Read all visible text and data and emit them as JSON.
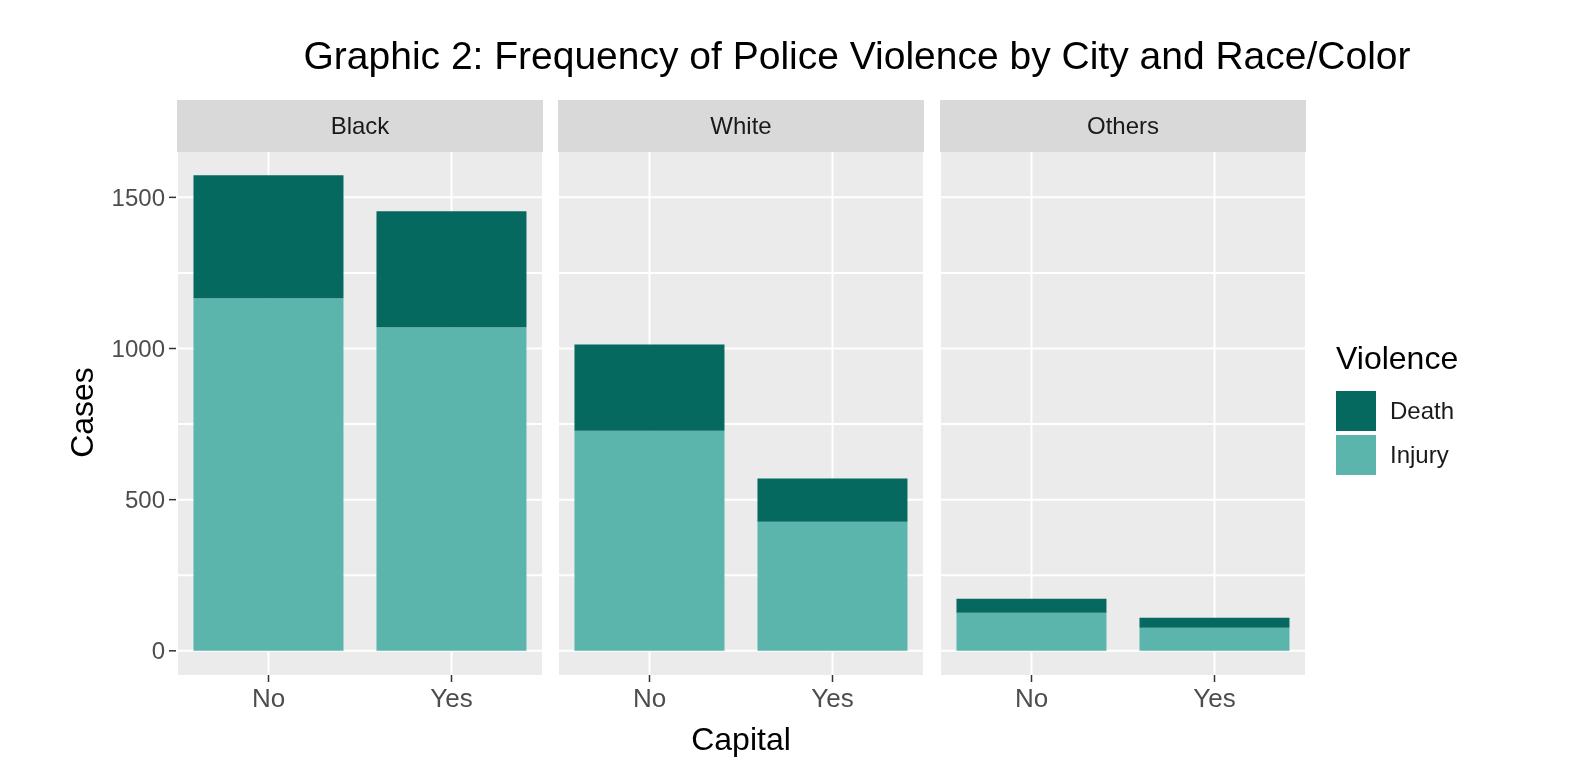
{
  "chart_data": [
    {
      "type": "bar",
      "title": "Black",
      "annotations": [
        "Graphic 2: Frequency of Police Violence by City and Race/Color"
      ],
      "ylabel": "Cases",
      "categories": [
        "No",
        "Yes"
      ],
      "stacked": true,
      "ylim": [
        -80,
        1650
      ],
      "yticks": [
        0,
        {
          "value": 250,
          "label": null
        },
        500,
        {
          "value": 750,
          "label": null
        },
        1000,
        {
          "value": 1250,
          "label": null
        },
        1500
      ],
      "grid": true,
      "series": [
        {
          "color": "#5cb5ad",
          "values": [
            1166,
            1070
          ]
        },
        {
          "color": "#05695f",
          "values": [
            407,
            384
          ]
        }
      ]
    },
    {
      "type": "bar",
      "title": "White",
      "xlabel": "Capital",
      "categories": [
        "No",
        "Yes"
      ],
      "stacked": true,
      "ylim": [
        -80,
        1650
      ],
      "yticks": [
        0,
        {
          "value": 250,
          "label": null
        },
        500,
        {
          "value": 750,
          "label": null
        },
        1000,
        {
          "value": 1250,
          "label": null
        },
        1500
      ],
      "grid": true,
      "tick_labels": "x",
      "series": [
        {
          "color": "#5cb5ad",
          "values": [
            728,
            427
          ]
        },
        {
          "color": "#05695f",
          "values": [
            285,
            143
          ]
        }
      ]
    },
    {
      "type": "bar",
      "title": "Others",
      "legend_title": "Violence",
      "legend": "right",
      "categories": [
        "No",
        "Yes"
      ],
      "stacked": true,
      "ylim": [
        -80,
        1650
      ],
      "yticks": [
        0,
        {
          "value": 250,
          "label": null
        },
        500,
        {
          "value": 750,
          "label": null
        },
        1000,
        {
          "value": 1250,
          "label": null
        },
        1500
      ],
      "grid": true,
      "tick_labels": "x",
      "series": [
        {
          "name": "Injury",
          "color": "#5cb5ad",
          "values": [
            126,
            76
          ]
        },
        {
          "name": "Death",
          "color": "#05695f",
          "values": [
            46,
            33
          ]
        }
      ]
    }
  ]
}
